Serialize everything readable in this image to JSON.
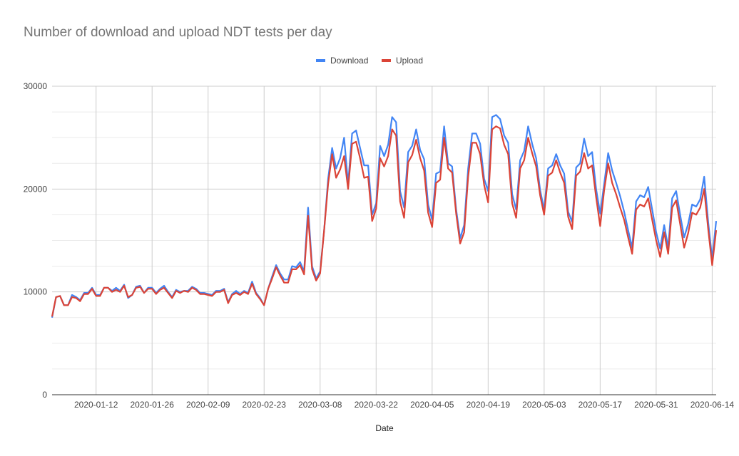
{
  "chart_data": {
    "type": "line",
    "title": "Number of download and upload NDT tests per day",
    "xlabel": "Date",
    "ylabel": "",
    "ylim": [
      0,
      30000
    ],
    "yticks": [
      0,
      10000,
      20000,
      30000
    ],
    "xticks": [
      "2020-01-12",
      "2020-01-26",
      "2020-02-09",
      "2020-02-23",
      "2020-03-08",
      "2020-03-22",
      "2020-04-05",
      "2020-04-19",
      "2020-05-03",
      "2020-05-17",
      "2020-05-31",
      "2020-06-14"
    ],
    "grid": true,
    "legend": "top",
    "x": [
      "2020-01-01",
      "2020-01-02",
      "2020-01-03",
      "2020-01-04",
      "2020-01-05",
      "2020-01-06",
      "2020-01-07",
      "2020-01-08",
      "2020-01-09",
      "2020-01-10",
      "2020-01-11",
      "2020-01-12",
      "2020-01-13",
      "2020-01-14",
      "2020-01-15",
      "2020-01-16",
      "2020-01-17",
      "2020-01-18",
      "2020-01-19",
      "2020-01-20",
      "2020-01-21",
      "2020-01-22",
      "2020-01-23",
      "2020-01-24",
      "2020-01-25",
      "2020-01-26",
      "2020-01-27",
      "2020-01-28",
      "2020-01-29",
      "2020-01-30",
      "2020-01-31",
      "2020-02-01",
      "2020-02-02",
      "2020-02-03",
      "2020-02-04",
      "2020-02-05",
      "2020-02-06",
      "2020-02-07",
      "2020-02-08",
      "2020-02-09",
      "2020-02-10",
      "2020-02-11",
      "2020-02-12",
      "2020-02-13",
      "2020-02-14",
      "2020-02-15",
      "2020-02-16",
      "2020-02-17",
      "2020-02-18",
      "2020-02-19",
      "2020-02-20",
      "2020-02-21",
      "2020-02-22",
      "2020-02-23",
      "2020-02-24",
      "2020-02-25",
      "2020-02-26",
      "2020-02-27",
      "2020-02-28",
      "2020-02-29",
      "2020-03-01",
      "2020-03-02",
      "2020-03-03",
      "2020-03-04",
      "2020-03-05",
      "2020-03-06",
      "2020-03-07",
      "2020-03-08",
      "2020-03-09",
      "2020-03-10",
      "2020-03-11",
      "2020-03-12",
      "2020-03-13",
      "2020-03-14",
      "2020-03-15",
      "2020-03-16",
      "2020-03-17",
      "2020-03-18",
      "2020-03-19",
      "2020-03-20",
      "2020-03-21",
      "2020-03-22",
      "2020-03-23",
      "2020-03-24",
      "2020-03-25",
      "2020-03-26",
      "2020-03-27",
      "2020-03-28",
      "2020-03-29",
      "2020-03-30",
      "2020-03-31",
      "2020-04-01",
      "2020-04-02",
      "2020-04-03",
      "2020-04-04",
      "2020-04-05",
      "2020-04-06",
      "2020-04-07",
      "2020-04-08",
      "2020-04-09",
      "2020-04-10",
      "2020-04-11",
      "2020-04-12",
      "2020-04-13",
      "2020-04-14",
      "2020-04-15",
      "2020-04-16",
      "2020-04-17",
      "2020-04-18",
      "2020-04-19",
      "2020-04-20",
      "2020-04-21",
      "2020-04-22",
      "2020-04-23",
      "2020-04-24",
      "2020-04-25",
      "2020-04-26",
      "2020-04-27",
      "2020-04-28",
      "2020-04-29",
      "2020-04-30",
      "2020-05-01",
      "2020-05-02",
      "2020-05-03",
      "2020-05-04",
      "2020-05-05",
      "2020-05-06",
      "2020-05-07",
      "2020-05-08",
      "2020-05-09",
      "2020-05-10",
      "2020-05-11",
      "2020-05-12",
      "2020-05-13",
      "2020-05-14",
      "2020-05-15",
      "2020-05-16",
      "2020-05-17",
      "2020-05-18",
      "2020-05-19",
      "2020-05-20",
      "2020-05-21",
      "2020-05-22",
      "2020-05-23",
      "2020-05-24",
      "2020-05-25",
      "2020-05-26",
      "2020-05-27",
      "2020-05-28",
      "2020-05-29",
      "2020-05-30",
      "2020-05-31",
      "2020-06-01",
      "2020-06-02",
      "2020-06-03",
      "2020-06-04",
      "2020-06-05",
      "2020-06-06",
      "2020-06-07",
      "2020-06-08",
      "2020-06-09",
      "2020-06-10",
      "2020-06-11",
      "2020-06-12",
      "2020-06-13",
      "2020-06-14",
      "2020-06-15"
    ],
    "series": [
      {
        "name": "Download",
        "color": "#4285f4",
        "values": [
          7500,
          9500,
          9600,
          8700,
          8700,
          9700,
          9500,
          9200,
          9900,
          9900,
          10400,
          9700,
          9700,
          10400,
          10400,
          10100,
          10400,
          10100,
          10700,
          9400,
          9700,
          10500,
          10600,
          9900,
          10400,
          10400,
          9900,
          10300,
          10600,
          10000,
          9500,
          10200,
          10000,
          10100,
          10100,
          10500,
          10300,
          9900,
          9900,
          9800,
          9700,
          10100,
          10100,
          10300,
          9000,
          9800,
          10100,
          9800,
          10100,
          9900,
          11000,
          9900,
          9400,
          8700,
          10300,
          11500,
          12600,
          11800,
          11200,
          11200,
          12500,
          12400,
          12900,
          12000,
          18200,
          12500,
          11300,
          12000,
          16000,
          21000,
          24000,
          22000,
          23000,
          25000,
          20500,
          25400,
          25700,
          24000,
          22300,
          22300,
          17500,
          18600,
          24200,
          23200,
          24300,
          27000,
          26500,
          19800,
          18200,
          23600,
          24200,
          25800,
          23800,
          22900,
          18500,
          17000,
          21500,
          21700,
          26100,
          22500,
          22200,
          18000,
          15200,
          16500,
          22000,
          25400,
          25400,
          24400,
          21000,
          19800,
          27000,
          27200,
          26800,
          25200,
          24500,
          19500,
          18000,
          22800,
          23700,
          26100,
          24400,
          23000,
          19900,
          18000,
          22000,
          22300,
          23400,
          22300,
          21500,
          17800,
          16800,
          22100,
          22500,
          24900,
          23200,
          23600,
          20000,
          17600,
          20500,
          23500,
          21800,
          20600,
          19300,
          17800,
          16000,
          14300,
          18800,
          19400,
          19200,
          20200,
          18000,
          15800,
          14200,
          16500,
          14300,
          19100,
          19800,
          17500,
          15300,
          16600,
          18500,
          18300,
          19000,
          21200,
          16800,
          13200,
          16900
        ]
      },
      {
        "name": "Upload",
        "color": "#db4437",
        "values": [
          7600,
          9500,
          9600,
          8700,
          8700,
          9500,
          9400,
          9100,
          9800,
          9800,
          10300,
          9600,
          9600,
          10400,
          10400,
          10000,
          10200,
          10000,
          10600,
          9500,
          9700,
          10400,
          10500,
          9900,
          10300,
          10300,
          9800,
          10200,
          10400,
          9900,
          9400,
          10100,
          9900,
          10100,
          10000,
          10400,
          10200,
          9800,
          9800,
          9700,
          9600,
          10000,
          10000,
          10200,
          8900,
          9700,
          9900,
          9700,
          10000,
          9800,
          10800,
          9800,
          9300,
          8700,
          10300,
          11300,
          12400,
          11600,
          10900,
          10900,
          12200,
          12200,
          12600,
          11700,
          17400,
          12200,
          11100,
          11800,
          16000,
          20500,
          23400,
          21100,
          21900,
          23200,
          20000,
          24400,
          24600,
          23000,
          21100,
          21200,
          16900,
          18100,
          23000,
          22200,
          23200,
          25800,
          25200,
          18800,
          17200,
          22600,
          23300,
          24800,
          23000,
          21800,
          17700,
          16300,
          20600,
          20900,
          25000,
          22000,
          21600,
          17600,
          14700,
          15800,
          21200,
          24500,
          24500,
          23400,
          20400,
          18700,
          25800,
          26100,
          25900,
          24300,
          23400,
          18600,
          17200,
          22000,
          22800,
          25000,
          23500,
          22200,
          19400,
          17500,
          21300,
          21600,
          22800,
          21600,
          20600,
          17300,
          16100,
          21300,
          21700,
          23500,
          22000,
          22300,
          19200,
          16400,
          19900,
          22500,
          20600,
          19500,
          18200,
          17000,
          15300,
          13700,
          18000,
          18500,
          18300,
          19100,
          17000,
          15000,
          13400,
          15800,
          13700,
          18200,
          18900,
          16600,
          14300,
          15700,
          17700,
          17500,
          18200,
          20000,
          16100,
          12600,
          16000
        ]
      }
    ]
  }
}
